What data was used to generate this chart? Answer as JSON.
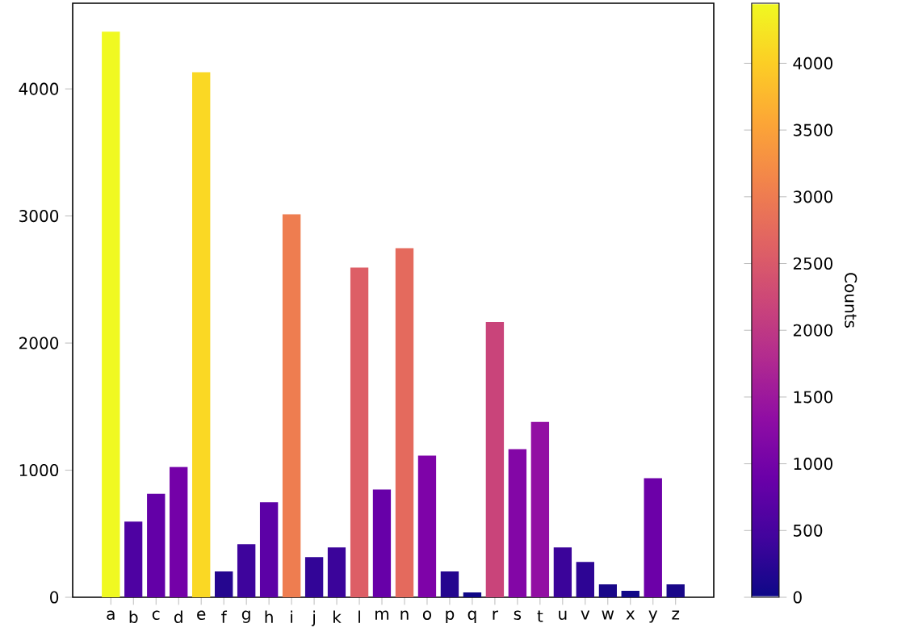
{
  "chart_data": {
    "type": "bar",
    "categories": [
      "a",
      "b",
      "c",
      "d",
      "e",
      "f",
      "g",
      "h",
      "i",
      "j",
      "k",
      "l",
      "m",
      "n",
      "o",
      "p",
      "q",
      "r",
      "s",
      "t",
      "u",
      "v",
      "w",
      "x",
      "y",
      "z"
    ],
    "values": [
      4450,
      595,
      814,
      1025,
      4131,
      203,
      418,
      747,
      3013,
      316,
      392,
      2595,
      848,
      2747,
      1114,
      203,
      38,
      2165,
      1165,
      1380,
      392,
      278,
      101,
      51,
      937,
      101
    ],
    "colors": [
      "#f0f921",
      "#4e02a2",
      "#6300a7",
      "#7401a8",
      "#fad824",
      "#25068f",
      "#3e049c",
      "#5c01a6",
      "#ee7d50",
      "#320597",
      "#3b049a",
      "#dd5e66",
      "#6700a8",
      "#e46a5d",
      "#7e03a8",
      "#25068f",
      "#100787",
      "#c9447a",
      "#8306a6",
      "#920ea3",
      "#3b049a",
      "#2d0594",
      "#190789",
      "#110888",
      "#6c00a8",
      "#190789"
    ],
    "ylim": [
      0,
      4674
    ],
    "yticks": [
      0,
      1000,
      2000,
      3000,
      4000
    ],
    "clabel": "Counts",
    "clim": [
      0,
      4450
    ],
    "cticks": [
      0,
      500,
      1000,
      1500,
      2000,
      2500,
      3000,
      3500,
      4000
    ]
  }
}
